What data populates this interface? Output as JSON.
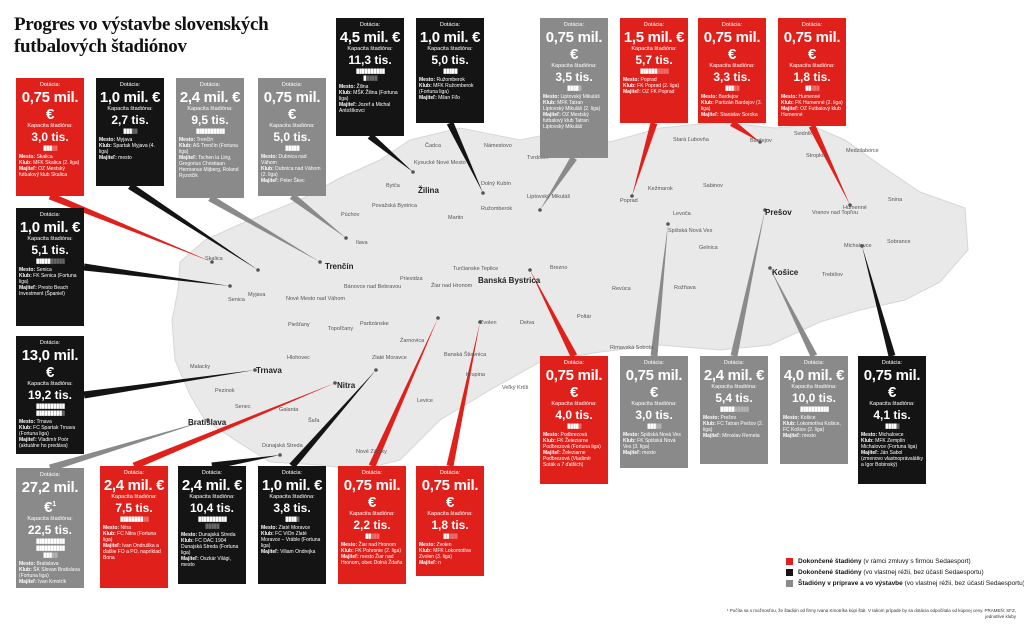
{
  "title": "Progres vo výstavbe slovenských futbalových štadiónov",
  "labels": {
    "dotacia": "Dotácia:",
    "kapacita": "Kapacita štadióna:"
  },
  "colors": {
    "red": "#e0201b",
    "black": "#141414",
    "grey": "#8a8a8a",
    "map": "#e9e9e9"
  },
  "icon": "person-icon",
  "cards": [
    {
      "id": "skalica",
      "status": "red",
      "amount": "0,75 mil. €",
      "capacity": "3,0 tis.",
      "seats": 3.0,
      "lines": [
        {
          "k": "Mesto:",
          "v": "Skalica"
        },
        {
          "k": "Klub:",
          "v": "MFK Skalica (2. liga)"
        },
        {
          "k": "Majiteľ:",
          "v": "OZ Mestský futbalový klub Skalica"
        }
      ]
    },
    {
      "id": "myjava",
      "status": "black",
      "amount": "1,0 mil. €",
      "capacity": "2,7 tis.",
      "seats": 2.7,
      "lines": [
        {
          "k": "Mesto:",
          "v": "Myjava"
        },
        {
          "k": "Klub:",
          "v": "Spartak Myjava (4. liga)"
        },
        {
          "k": "Majiteľ:",
          "v": "mesto"
        }
      ]
    },
    {
      "id": "trencin",
      "status": "grey",
      "amount": "2,4 mil. €",
      "capacity": "9,5 tis.",
      "seats": 9.5,
      "lines": [
        {
          "k": "Mesto:",
          "v": "Trenčín"
        },
        {
          "k": "Klub:",
          "v": "AS Trenčín (Fortuna liga)"
        },
        {
          "k": "Majiteľ:",
          "v": "Tschen la Ling, Gregorius Christiaan Hermanus Mijberg, Roland Ryzotčik"
        }
      ]
    },
    {
      "id": "dubnica",
      "status": "grey",
      "amount": "0,75 mil. €",
      "capacity": "5,0 tis.",
      "seats": 5.0,
      "lines": [
        {
          "k": "Mesto:",
          "v": "Dubnica nad Váhom"
        },
        {
          "k": "Klub:",
          "v": "Dubnica nad Váhom (2. liga)"
        },
        {
          "k": "Majiteľ:",
          "v": "Peter Škec"
        }
      ]
    },
    {
      "id": "zilina",
      "status": "black",
      "amount": "4,5 mil. €",
      "capacity": "11,3 tis.",
      "seats": 11.3,
      "lines": [
        {
          "k": "Mesto:",
          "v": "Žilina"
        },
        {
          "k": "Klub:",
          "v": "MŠK Žilina (Fortuna liga)"
        },
        {
          "k": "Majiteľ:",
          "v": "Jozef a Michal Antošíkovci"
        }
      ]
    },
    {
      "id": "ruzomberok",
      "status": "black",
      "amount": "1,0 mil. €",
      "capacity": "5,0 tis.",
      "seats": 5.0,
      "lines": [
        {
          "k": "Mesto:",
          "v": "Ružomberok"
        },
        {
          "k": "Klub:",
          "v": "MFK Ružomberok (Fortuna liga)"
        },
        {
          "k": "Majiteľ:",
          "v": "Milan Fiľo"
        }
      ]
    },
    {
      "id": "mikulas",
      "status": "grey",
      "amount": "0,75 mil. €",
      "capacity": "3,5 tis.",
      "seats": 3.5,
      "lines": [
        {
          "k": "Mesto:",
          "v": "Liptovský Mikuláš"
        },
        {
          "k": "Klub:",
          "v": "MFK Tatran Liptovský Mikuláš (2. liga)"
        },
        {
          "k": "Majiteľ:",
          "v": "OZ Mestský futbalový klub Tatran Liptovský Mikuláš"
        }
      ]
    },
    {
      "id": "poprad",
      "status": "red",
      "amount": "1,5 mil. €",
      "capacity": "5,7 tis.",
      "seats": 5.7,
      "lines": [
        {
          "k": "Mesto:",
          "v": "Poprad"
        },
        {
          "k": "Klub:",
          "v": "FK Poprad (2. liga)"
        },
        {
          "k": "Majiteľ:",
          "v": "OZ FK Poprad"
        }
      ]
    },
    {
      "id": "bardejov",
      "status": "red",
      "amount": "0,75 mil. €",
      "capacity": "3,3 tis.",
      "seats": 3.3,
      "lines": [
        {
          "k": "Mesto:",
          "v": "Bardejov"
        },
        {
          "k": "Klub:",
          "v": "Partizán Bardejov (3. liga)"
        },
        {
          "k": "Majiteľ:",
          "v": "Stanislav Soroka"
        }
      ]
    },
    {
      "id": "humenne",
      "status": "red",
      "amount": "0,75 mil. €",
      "capacity": "1,8 tis.",
      "seats": 1.8,
      "lines": [
        {
          "k": "Mesto:",
          "v": "Humenné"
        },
        {
          "k": "Klub:",
          "v": "FK Humenné (2. liga)"
        },
        {
          "k": "Majiteľ:",
          "v": "OZ Futbalový klub Humenné"
        }
      ]
    },
    {
      "id": "senica",
      "status": "black",
      "amount": "1,0 mil. €",
      "capacity": "5,1 tis.",
      "seats": 5.1,
      "lines": [
        {
          "k": "Mesto:",
          "v": "Senica"
        },
        {
          "k": "Klub:",
          "v": "FK Senica (Fortuna liga)"
        },
        {
          "k": "Majiteľ:",
          "v": "Presto Beach Investment (Španiel)"
        }
      ]
    },
    {
      "id": "trnava",
      "status": "black",
      "amount": "13,0 mil. €",
      "capacity": "19,2 tis.",
      "seats": 19.2,
      "lines": [
        {
          "k": "Mesto:",
          "v": "Trnava"
        },
        {
          "k": "Klub:",
          "v": "FC Spartak Trnava (Fortuna liga)"
        },
        {
          "k": "Majiteľ:",
          "v": "Vladimír Poór (aktuálne ho predáva)"
        }
      ]
    },
    {
      "id": "bratislava",
      "status": "grey",
      "amount": "27,2 mil. €",
      "amount_note": "1",
      "capacity": "22,5 tis.",
      "seats": 22.5,
      "lines": [
        {
          "k": "Mesto:",
          "v": "Bratislava"
        },
        {
          "k": "Klub:",
          "v": "ŠK Slovan Bratislava (Fortuna liga)"
        },
        {
          "k": "Majiteľ:",
          "v": "Ivan Kmotrík"
        }
      ]
    },
    {
      "id": "nitra",
      "status": "red",
      "amount": "2,4 mil. €",
      "capacity": "7,5 tis.",
      "seats": 7.5,
      "lines": [
        {
          "k": "Mesto:",
          "v": "Nitra"
        },
        {
          "k": "Klub:",
          "v": "FC Nitra (Fortuna liga)"
        },
        {
          "k": "Majiteľ:",
          "v": "Ivan Ondruška a ďalšie FO a PO, napríklad Bona"
        }
      ]
    },
    {
      "id": "dunajska",
      "status": "black",
      "amount": "2,4 mil. €",
      "capacity": "10,4 tis.",
      "seats": 10.4,
      "lines": [
        {
          "k": "Mesto:",
          "v": "Dunajská Streda"
        },
        {
          "k": "Klub:",
          "v": "FC DAC 1904 Dunajská Streda (Fortuna liga)"
        },
        {
          "k": "Majiteľ:",
          "v": "Oszkár Világi, mesto"
        }
      ]
    },
    {
      "id": "moravce",
      "status": "black",
      "amount": "1,0 mil. €",
      "capacity": "3,8 tis.",
      "seats": 3.8,
      "lines": [
        {
          "k": "Mesto:",
          "v": "Zlaté Moravce"
        },
        {
          "k": "Klub:",
          "v": "FC ViOn Zlaté Moravce – Vráble (Fortuna liga)"
        },
        {
          "k": "Majiteľ:",
          "v": "Viliam Ondrejka"
        }
      ]
    },
    {
      "id": "ziar",
      "status": "red",
      "amount": "0,75 mil. €",
      "capacity": "2,2 tis.",
      "seats": 2.2,
      "lines": [
        {
          "k": "Mesto:",
          "v": "Žiar nad Hronom"
        },
        {
          "k": "Klub:",
          "v": "FK Pohronie (2. liga)"
        },
        {
          "k": "Majiteľ:",
          "v": "mesto Žiar nad Hronom, obec Dolná Ždaňa"
        }
      ]
    },
    {
      "id": "zvolen",
      "status": "red",
      "amount": "0,75 mil. €",
      "capacity": "1,8 tis.",
      "seats": 1.8,
      "lines": [
        {
          "k": "Mesto:",
          "v": "Zvolen"
        },
        {
          "k": "Klub:",
          "v": "MFK Lokomotíva Zvolen (3. liga)"
        },
        {
          "k": "Majiteľ:",
          "v": "n"
        }
      ]
    },
    {
      "id": "podbrezova",
      "status": "red",
      "amount": "0,75 mil. €",
      "capacity": "4,0 tis.",
      "seats": 4.0,
      "lines": [
        {
          "k": "Mesto:",
          "v": "Podbrezová"
        },
        {
          "k": "Klub:",
          "v": "FK Železiarne Podbrezová (Fortuna liga)"
        },
        {
          "k": "Majiteľ:",
          "v": "Železiarne Podbrezová (Vladimír Soták a 7 ďalších)"
        }
      ]
    },
    {
      "id": "snv",
      "status": "grey",
      "amount": "0,75 mil. €",
      "capacity": "3,0 tis.",
      "seats": 3.0,
      "lines": [
        {
          "k": "Mesto:",
          "v": "Spišská Nová Ves"
        },
        {
          "k": "Klub:",
          "v": "FK Spišská Nová Ves (3. liga)"
        },
        {
          "k": "Majiteľ:",
          "v": "mesto"
        }
      ]
    },
    {
      "id": "presov",
      "status": "grey",
      "amount": "2,4 mil. €",
      "capacity": "5,4 tis.",
      "seats": 5.4,
      "lines": [
        {
          "k": "Mesto:",
          "v": "Prešov"
        },
        {
          "k": "Klub:",
          "v": "FC Tatran Prešov (2. liga)"
        },
        {
          "k": "Majiteľ:",
          "v": "Miroslav Remeta"
        }
      ]
    },
    {
      "id": "kosice",
      "status": "grey",
      "amount": "4,0 mil. €",
      "capacity": "10,0 tis.",
      "seats": 10.0,
      "lines": [
        {
          "k": "Mesto:",
          "v": "Košice"
        },
        {
          "k": "Klub:",
          "v": "Lokomotíva Košice, FC Košice (2. liga)"
        },
        {
          "k": "Majiteľ:",
          "v": "mesto"
        }
      ]
    },
    {
      "id": "michalovce",
      "status": "black",
      "amount": "0,75 mil. €",
      "capacity": "4,1 tis.",
      "seats": 4.1,
      "lines": [
        {
          "k": "Mesto:",
          "v": "Michalovce"
        },
        {
          "k": "Klub:",
          "v": "MFK Zemplín Michalovce (Fortuna liga)"
        },
        {
          "k": "Majiteľ:",
          "v": "Ján Sabol (zmenovo vlastnoprávalátky a Igor Bobinský)"
        }
      ]
    }
  ],
  "cities": [
    {
      "name": "Čadca"
    },
    {
      "name": "Kysucké Nové Mesto"
    },
    {
      "name": "Žilina",
      "big": true
    },
    {
      "name": "Bytča"
    },
    {
      "name": "Považská Bystrica"
    },
    {
      "name": "Púchov"
    },
    {
      "name": "Ilava"
    },
    {
      "name": "Trenčín",
      "big": true
    },
    {
      "name": "Dolný Kubín"
    },
    {
      "name": "Ružomberok"
    },
    {
      "name": "Martin"
    },
    {
      "name": "Tvrdošín"
    },
    {
      "name": "Liptovský Mikuláš"
    },
    {
      "name": "Námestovo"
    },
    {
      "name": "Poprad"
    },
    {
      "name": "Kežmarok"
    },
    {
      "name": "Stará Ľubovňa"
    },
    {
      "name": "Bardejov"
    },
    {
      "name": "Svidník"
    },
    {
      "name": "Stropkov"
    },
    {
      "name": "Medzilaborce"
    },
    {
      "name": "Sabinov"
    },
    {
      "name": "Prešov",
      "big": true
    },
    {
      "name": "Humenné"
    },
    {
      "name": "Snina"
    },
    {
      "name": "Vranov nad Topľou"
    },
    {
      "name": "Michalovce"
    },
    {
      "name": "Sobrance"
    },
    {
      "name": "Trebišov"
    },
    {
      "name": "Košice",
      "big": true
    },
    {
      "name": "Levoča"
    },
    {
      "name": "Spišská Nová Ves"
    },
    {
      "name": "Gelnica"
    },
    {
      "name": "Rožňava"
    },
    {
      "name": "Revúca"
    },
    {
      "name": "Brezno"
    },
    {
      "name": "Banská Bystrica",
      "big": true
    },
    {
      "name": "Turčianske Teplice"
    },
    {
      "name": "Prievidza"
    },
    {
      "name": "Detva"
    },
    {
      "name": "Poltár"
    },
    {
      "name": "Rimavská Sobota"
    },
    {
      "name": "Zvolen"
    },
    {
      "name": "Žiar nad Hronom"
    },
    {
      "name": "Banská Štiavnica"
    },
    {
      "name": "Krupina"
    },
    {
      "name": "Žarnovica"
    },
    {
      "name": "Veľký Krtíš"
    },
    {
      "name": "Lučenec"
    },
    {
      "name": "Zlaté Moravce"
    },
    {
      "name": "Nitra",
      "big": true
    },
    {
      "name": "Topoľčany"
    },
    {
      "name": "Partizánske"
    },
    {
      "name": "Bánovce nad Bebravou"
    },
    {
      "name": "Nové Mesto nad Váhom"
    },
    {
      "name": "Myjava"
    },
    {
      "name": "Piešťany"
    },
    {
      "name": "Hlohovec"
    },
    {
      "name": "Trnava",
      "big": true
    },
    {
      "name": "Senica"
    },
    {
      "name": "Skalica"
    },
    {
      "name": "Malacky"
    },
    {
      "name": "Pezinok"
    },
    {
      "name": "Senec"
    },
    {
      "name": "Bratislava",
      "big": true
    },
    {
      "name": "Galanta"
    },
    {
      "name": "Šaľa"
    },
    {
      "name": "Dunajská Streda"
    },
    {
      "name": "Nové Zámky"
    },
    {
      "name": "Levice"
    }
  ],
  "legend": [
    {
      "color": "#e0201b",
      "bold": "Dokončené štadióny",
      "rest": " (v rámci zmluvy s firmou Sedaesport)"
    },
    {
      "color": "#141414",
      "bold": "Dokončené štadióny",
      "rest": " (vo vlastnej réžii, bez účasti Sedaesportu)"
    },
    {
      "color": "#8a8a8a",
      "bold": "Štadióny v príprave a vo výstavbe",
      "rest": " (vo vlastnej réžii, bez účasti Sedaesportu)"
    }
  ],
  "footnote": "¹ Počíta sa s možnosťou, že štadión od firmy Ivana Kmotríka kúpi štát. V takom prípade by sa dotácia odpočítala od kúpnej ceny. PRAMEŇ: SFZ, jednotlivé kluby"
}
